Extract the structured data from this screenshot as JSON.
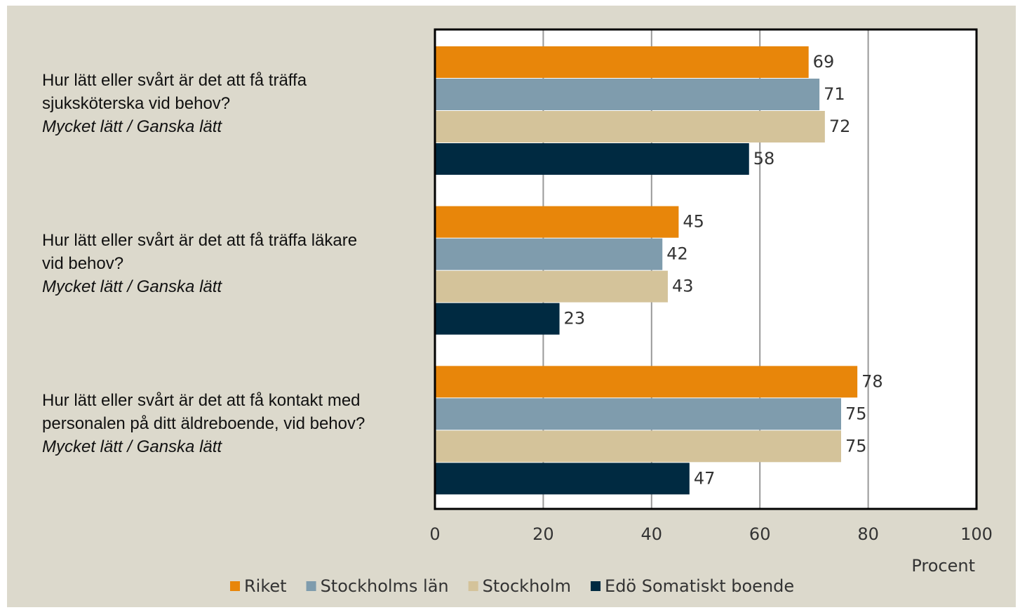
{
  "chart_data": {
    "type": "bar",
    "orientation": "horizontal",
    "categories": [
      "Hur lätt eller svårt är det att få träffa sjuksköterska vid behov?",
      "Hur lätt eller svårt är det att få träffa läkare vid behov?",
      "Hur lätt eller svårt är det att få kontakt med personalen på ditt äldreboende, vid behov?"
    ],
    "category_notes": [
      "Mycket lätt / Ganska lätt",
      "Mycket lätt / Ganska lätt",
      "Mycket lätt / Ganska lätt"
    ],
    "series": [
      {
        "name": "Riket",
        "color": "#e8860a",
        "values": [
          69,
          45,
          78
        ]
      },
      {
        "name": "Stockholms län",
        "color": "#7f9cad",
        "values": [
          71,
          42,
          75
        ]
      },
      {
        "name": "Stockholm",
        "color": "#d4c39a",
        "values": [
          72,
          43,
          75
        ]
      },
      {
        "name": "Edö Somatiskt boende",
        "color": "#002a41",
        "values": [
          58,
          23,
          47
        ]
      }
    ],
    "xlabel": "Procent",
    "xlim": [
      0,
      100
    ],
    "xticks": [
      0,
      20,
      40,
      60,
      80,
      100
    ],
    "grid": true,
    "legend": "bottom"
  }
}
